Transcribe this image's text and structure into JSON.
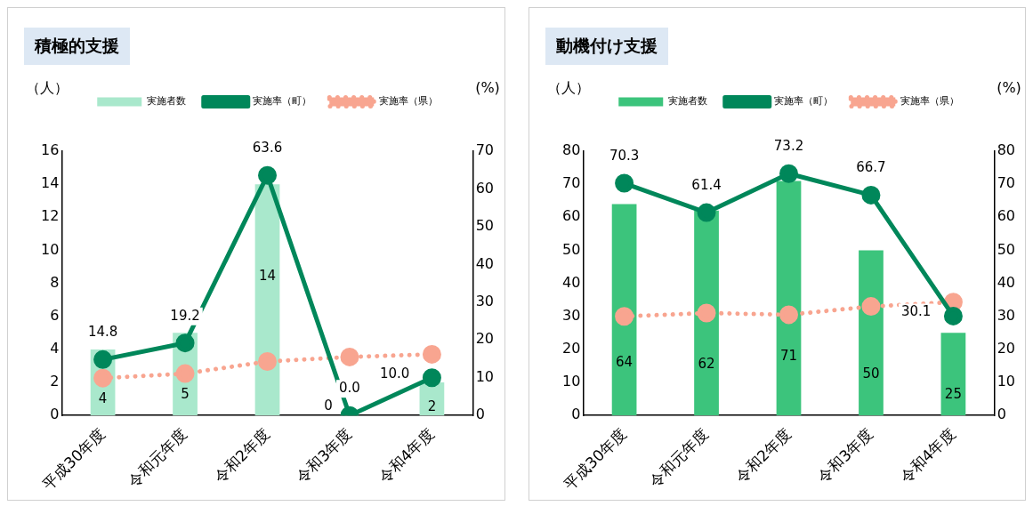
{
  "chart_data": [
    {
      "type": "bar",
      "title": "積極的支援",
      "ylabel": "（人）",
      "y2label": "(%)",
      "categories": [
        "平成30年度",
        "令和元年度",
        "令和2年度",
        "令和3年度",
        "令和4年度"
      ],
      "ylim": [
        0,
        16
      ],
      "yticks": [
        0,
        2,
        4,
        6,
        8,
        10,
        12,
        14,
        16
      ],
      "y2lim": [
        0,
        70
      ],
      "y2ticks": [
        0,
        10,
        20,
        30,
        40,
        50,
        60,
        70
      ],
      "legend": "top",
      "marker": "circle",
      "series": [
        {
          "name": "実施者数",
          "type": "bar",
          "color": "#a9e8cc",
          "values": [
            4,
            5,
            14,
            0,
            2
          ],
          "value_labels": [
            "4",
            "5",
            "14",
            "0",
            "2"
          ]
        },
        {
          "name": "実施率（町）",
          "type": "line",
          "axis": "y2",
          "color": "#00875a",
          "line_style": "solid",
          "values": [
            14.8,
            19.2,
            63.6,
            0.0,
            10.0
          ],
          "value_labels": [
            "14.8",
            "19.2",
            "63.6",
            "0.0",
            "10.0"
          ]
        },
        {
          "name": "実施率（県）",
          "type": "line",
          "axis": "y2",
          "color": "#f8a590",
          "line_style": "dotted",
          "values": [
            9.9,
            11.1,
            14.3,
            15.5,
            16.2
          ]
        }
      ]
    },
    {
      "type": "bar",
      "title": "動機付け支援",
      "ylabel": "（人）",
      "y2label": "(%)",
      "categories": [
        "平成30年度",
        "令和元年度",
        "令和2年度",
        "令和3年度",
        "令和4年度"
      ],
      "ylim": [
        0,
        80
      ],
      "yticks": [
        0,
        10,
        20,
        30,
        40,
        50,
        60,
        70,
        80
      ],
      "y2lim": [
        0,
        80
      ],
      "y2ticks": [
        0,
        10,
        20,
        30,
        40,
        50,
        60,
        70,
        80
      ],
      "legend": "top",
      "marker": "circle",
      "series": [
        {
          "name": "実施者数",
          "type": "bar",
          "color": "#3cc47c",
          "values": [
            64,
            62,
            71,
            50,
            25
          ],
          "value_labels": [
            "64",
            "62",
            "71",
            "50",
            "25"
          ]
        },
        {
          "name": "実施率（町）",
          "type": "line",
          "axis": "y2",
          "color": "#00875a",
          "line_style": "solid",
          "values": [
            70.3,
            61.4,
            73.2,
            66.7,
            30.1
          ],
          "value_labels": [
            "70.3",
            "61.4",
            "73.2",
            "66.7",
            "30.1"
          ]
        },
        {
          "name": "実施率（県）",
          "type": "line",
          "axis": "y2",
          "color": "#f8a590",
          "line_style": "dotted",
          "values": [
            30.0,
            31.0,
            30.5,
            33.0,
            34.3
          ]
        }
      ]
    }
  ]
}
